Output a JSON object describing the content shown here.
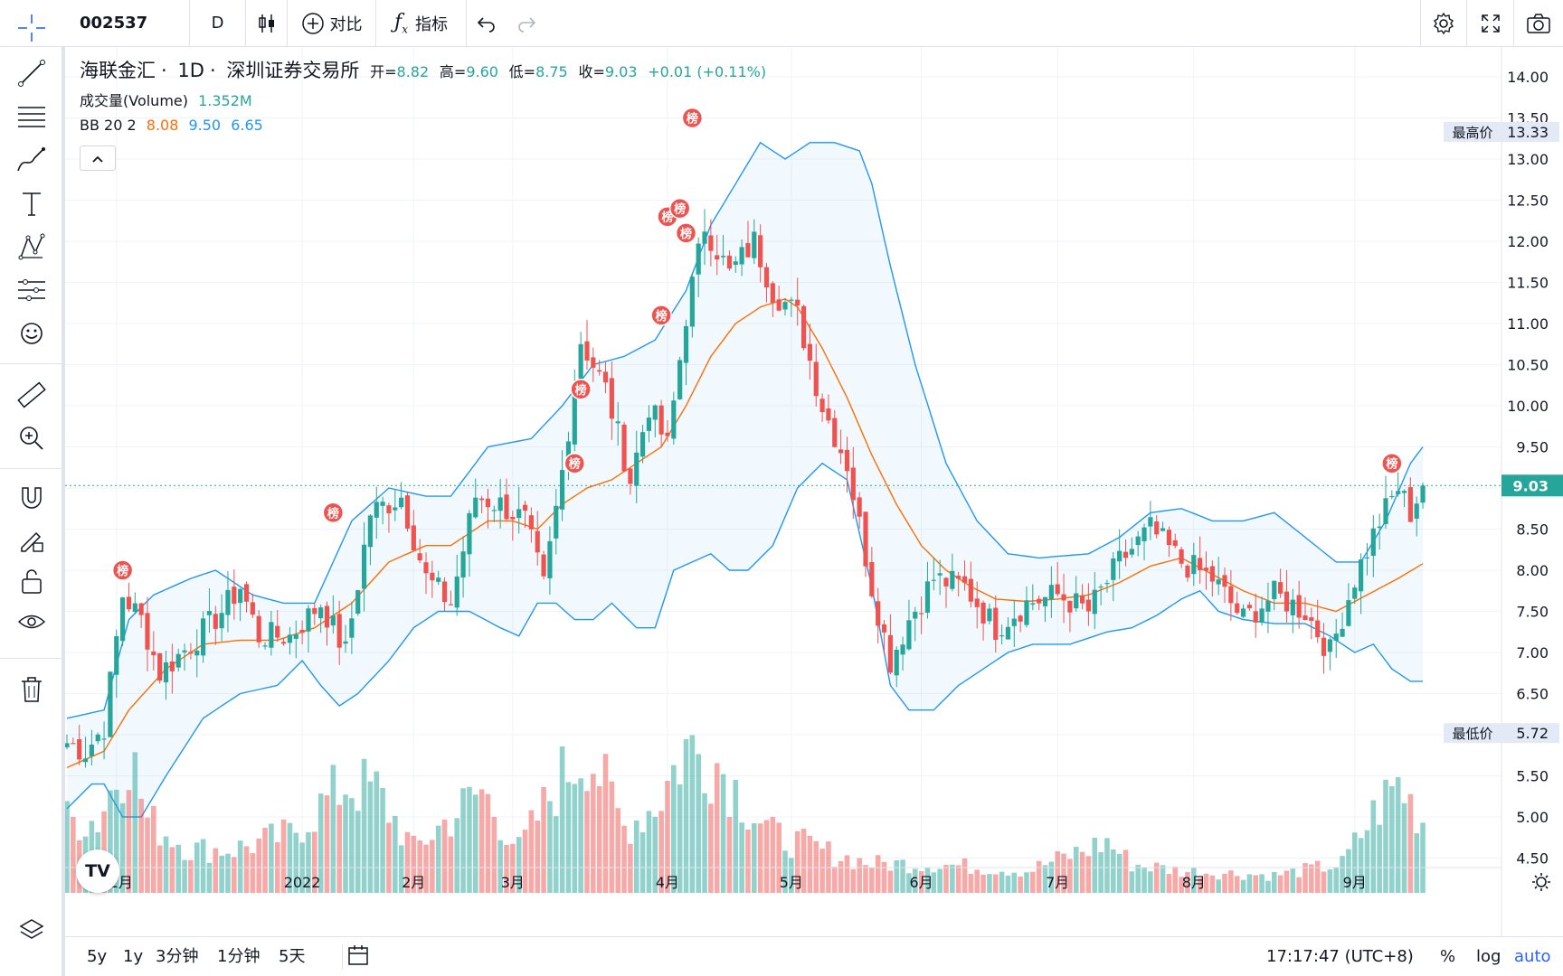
{
  "toolbar": {
    "symbol": "002537",
    "interval": "D",
    "compare_label": "对比",
    "indicators_label": "指标"
  },
  "legend": {
    "name": "海联金汇",
    "interval": "1D",
    "exchange": "深圳证券交易所",
    "open_label": "开=",
    "open": "8.82",
    "high_label": "高=",
    "high": "9.60",
    "low_label": "低=",
    "low": "8.75",
    "close_label": "收=",
    "close": "9.03",
    "change": "+0.01 (+0.11%)",
    "volume_label": "成交量(Volume)",
    "volume_value": "1.352M",
    "bb_label": "BB 20 2",
    "bb_middle": "8.08",
    "bb_upper": "9.50",
    "bb_lower": "6.65"
  },
  "badges": {
    "high_label": "最高价",
    "high_value": "13.33",
    "low_label": "最低价",
    "low_value": "5.72",
    "last_price": "9.03"
  },
  "marker_text": "榜",
  "bottom": {
    "ranges": [
      "5y",
      "1y",
      "3分钟",
      "1分钟",
      "5天"
    ],
    "time": "17:17:47 (UTC+8)",
    "percent": "%",
    "log": "log",
    "auto": "auto"
  },
  "colors": {
    "up": "#26a69a",
    "down": "#ef5350",
    "bb_band": "#2196f3",
    "bb_middle": "#ff6d00",
    "accent": "#2962ff"
  },
  "chart_data": {
    "type": "candlestick",
    "title": "海联金汇 · 1D · 深圳证券交易所",
    "y_ticks": [
      "4.50",
      "5.00",
      "5.50",
      "6.00",
      "6.50",
      "7.00",
      "7.50",
      "8.00",
      "8.50",
      "9.00",
      "9.50",
      "10.00",
      "10.50",
      "11.00",
      "11.50",
      "12.00",
      "12.50",
      "13.00",
      "13.50",
      "14.00"
    ],
    "x_ticks": [
      "12月",
      "2022",
      "2月",
      "3月",
      "4月",
      "5月",
      "6月",
      "7月",
      "8月",
      "9月"
    ],
    "ylim": [
      4.2,
      14.2
    ],
    "last_price": 9.03,
    "anchors": [
      {
        "x": 0,
        "v": 5.9
      },
      {
        "x": 3,
        "v": 5.8
      },
      {
        "x": 6,
        "v": 6.1
      },
      {
        "x": 9,
        "v": 7.7
      },
      {
        "x": 12,
        "v": 7.4
      },
      {
        "x": 15,
        "v": 6.75
      },
      {
        "x": 20,
        "v": 7.1
      },
      {
        "x": 25,
        "v": 7.5
      },
      {
        "x": 28,
        "v": 7.8
      },
      {
        "x": 31,
        "v": 7.2
      },
      {
        "x": 36,
        "v": 7.2
      },
      {
        "x": 41,
        "v": 7.6
      },
      {
        "x": 45,
        "v": 7.0
      },
      {
        "x": 49,
        "v": 8.7
      },
      {
        "x": 54,
        "v": 8.9
      },
      {
        "x": 58,
        "v": 7.9
      },
      {
        "x": 62,
        "v": 7.6
      },
      {
        "x": 66,
        "v": 8.9
      },
      {
        "x": 70,
        "v": 8.8
      },
      {
        "x": 74,
        "v": 8.6
      },
      {
        "x": 77,
        "v": 7.8
      },
      {
        "x": 80,
        "v": 9.2
      },
      {
        "x": 83,
        "v": 10.8
      },
      {
        "x": 87,
        "v": 10.2
      },
      {
        "x": 91,
        "v": 9.1
      },
      {
        "x": 94,
        "v": 10.0
      },
      {
        "x": 97,
        "v": 9.5
      },
      {
        "x": 100,
        "v": 11.1
      },
      {
        "x": 103,
        "v": 12.2
      },
      {
        "x": 107,
        "v": 11.6
      },
      {
        "x": 111,
        "v": 12.0
      },
      {
        "x": 114,
        "v": 11.4
      },
      {
        "x": 118,
        "v": 11.1
      },
      {
        "x": 122,
        "v": 10.0
      },
      {
        "x": 126,
        "v": 9.3
      },
      {
        "x": 130,
        "v": 7.8
      },
      {
        "x": 133,
        "v": 6.9
      },
      {
        "x": 136,
        "v": 7.4
      },
      {
        "x": 140,
        "v": 7.9
      },
      {
        "x": 145,
        "v": 7.8
      },
      {
        "x": 150,
        "v": 7.3
      },
      {
        "x": 155,
        "v": 7.6
      },
      {
        "x": 160,
        "v": 7.7
      },
      {
        "x": 165,
        "v": 7.5
      },
      {
        "x": 170,
        "v": 8.1
      },
      {
        "x": 175,
        "v": 8.5
      },
      {
        "x": 180,
        "v": 8.1
      },
      {
        "x": 185,
        "v": 7.9
      },
      {
        "x": 190,
        "v": 7.4
      },
      {
        "x": 195,
        "v": 7.7
      },
      {
        "x": 200,
        "v": 7.5
      },
      {
        "x": 204,
        "v": 7.0
      },
      {
        "x": 208,
        "v": 7.9
      },
      {
        "x": 212,
        "v": 8.6
      },
      {
        "x": 215,
        "v": 9.0
      },
      {
        "x": 217,
        "v": 8.7
      },
      {
        "x": 219,
        "v": 9.03
      }
    ],
    "bb_upper": [
      {
        "x": 0,
        "v": 6.2
      },
      {
        "x": 6,
        "v": 6.3
      },
      {
        "x": 10,
        "v": 7.4
      },
      {
        "x": 14,
        "v": 7.7
      },
      {
        "x": 20,
        "v": 7.9
      },
      {
        "x": 24,
        "v": 8.0
      },
      {
        "x": 30,
        "v": 7.7
      },
      {
        "x": 35,
        "v": 7.6
      },
      {
        "x": 40,
        "v": 7.6
      },
      {
        "x": 46,
        "v": 8.6
      },
      {
        "x": 52,
        "v": 9.0
      },
      {
        "x": 58,
        "v": 8.9
      },
      {
        "x": 62,
        "v": 8.9
      },
      {
        "x": 68,
        "v": 9.5
      },
      {
        "x": 75,
        "v": 9.6
      },
      {
        "x": 80,
        "v": 10.0
      },
      {
        "x": 85,
        "v": 10.5
      },
      {
        "x": 90,
        "v": 10.6
      },
      {
        "x": 95,
        "v": 10.8
      },
      {
        "x": 100,
        "v": 11.4
      },
      {
        "x": 104,
        "v": 12.2
      },
      {
        "x": 108,
        "v": 12.7
      },
      {
        "x": 112,
        "v": 13.2
      },
      {
        "x": 116,
        "v": 13.0
      },
      {
        "x": 120,
        "v": 13.2
      },
      {
        "x": 124,
        "v": 13.2
      },
      {
        "x": 128,
        "v": 13.1
      },
      {
        "x": 130,
        "v": 12.7
      },
      {
        "x": 133,
        "v": 11.7
      },
      {
        "x": 137,
        "v": 10.5
      },
      {
        "x": 142,
        "v": 9.3
      },
      {
        "x": 147,
        "v": 8.6
      },
      {
        "x": 152,
        "v": 8.2
      },
      {
        "x": 157,
        "v": 8.15
      },
      {
        "x": 165,
        "v": 8.2
      },
      {
        "x": 170,
        "v": 8.4
      },
      {
        "x": 175,
        "v": 8.7
      },
      {
        "x": 180,
        "v": 8.75
      },
      {
        "x": 185,
        "v": 8.6
      },
      {
        "x": 190,
        "v": 8.6
      },
      {
        "x": 195,
        "v": 8.7
      },
      {
        "x": 200,
        "v": 8.4
      },
      {
        "x": 205,
        "v": 8.1
      },
      {
        "x": 209,
        "v": 8.1
      },
      {
        "x": 213,
        "v": 8.6
      },
      {
        "x": 217,
        "v": 9.3
      },
      {
        "x": 219,
        "v": 9.5
      }
    ],
    "bb_middle": [
      {
        "x": 0,
        "v": 5.6
      },
      {
        "x": 6,
        "v": 5.8
      },
      {
        "x": 10,
        "v": 6.3
      },
      {
        "x": 16,
        "v": 6.8
      },
      {
        "x": 22,
        "v": 7.1
      },
      {
        "x": 28,
        "v": 7.15
      },
      {
        "x": 34,
        "v": 7.15
      },
      {
        "x": 40,
        "v": 7.3
      },
      {
        "x": 46,
        "v": 7.6
      },
      {
        "x": 52,
        "v": 8.1
      },
      {
        "x": 58,
        "v": 8.3
      },
      {
        "x": 62,
        "v": 8.3
      },
      {
        "x": 68,
        "v": 8.6
      },
      {
        "x": 72,
        "v": 8.6
      },
      {
        "x": 76,
        "v": 8.5
      },
      {
        "x": 80,
        "v": 8.8
      },
      {
        "x": 84,
        "v": 9.0
      },
      {
        "x": 88,
        "v": 9.1
      },
      {
        "x": 92,
        "v": 9.3
      },
      {
        "x": 96,
        "v": 9.5
      },
      {
        "x": 100,
        "v": 10.0
      },
      {
        "x": 104,
        "v": 10.6
      },
      {
        "x": 108,
        "v": 11.0
      },
      {
        "x": 112,
        "v": 11.2
      },
      {
        "x": 116,
        "v": 11.3
      },
      {
        "x": 118,
        "v": 11.2
      },
      {
        "x": 122,
        "v": 10.7
      },
      {
        "x": 126,
        "v": 10.1
      },
      {
        "x": 130,
        "v": 9.4
      },
      {
        "x": 134,
        "v": 8.8
      },
      {
        "x": 138,
        "v": 8.3
      },
      {
        "x": 142,
        "v": 8.0
      },
      {
        "x": 146,
        "v": 7.8
      },
      {
        "x": 150,
        "v": 7.65
      },
      {
        "x": 155,
        "v": 7.62
      },
      {
        "x": 160,
        "v": 7.65
      },
      {
        "x": 165,
        "v": 7.7
      },
      {
        "x": 170,
        "v": 7.85
      },
      {
        "x": 175,
        "v": 8.05
      },
      {
        "x": 180,
        "v": 8.15
      },
      {
        "x": 185,
        "v": 7.95
      },
      {
        "x": 190,
        "v": 7.75
      },
      {
        "x": 195,
        "v": 7.6
      },
      {
        "x": 200,
        "v": 7.6
      },
      {
        "x": 205,
        "v": 7.5
      },
      {
        "x": 210,
        "v": 7.7
      },
      {
        "x": 215,
        "v": 7.9
      },
      {
        "x": 219,
        "v": 8.08
      }
    ],
    "bb_lower": [
      {
        "x": 0,
        "v": 5.1
      },
      {
        "x": 4,
        "v": 5.4
      },
      {
        "x": 6,
        "v": 5.4
      },
      {
        "x": 9,
        "v": 5.0
      },
      {
        "x": 12,
        "v": 5.0
      },
      {
        "x": 16,
        "v": 5.5
      },
      {
        "x": 22,
        "v": 6.2
      },
      {
        "x": 28,
        "v": 6.5
      },
      {
        "x": 34,
        "v": 6.6
      },
      {
        "x": 38,
        "v": 6.9
      },
      {
        "x": 41,
        "v": 6.6
      },
      {
        "x": 44,
        "v": 6.35
      },
      {
        "x": 47,
        "v": 6.5
      },
      {
        "x": 52,
        "v": 6.9
      },
      {
        "x": 56,
        "v": 7.3
      },
      {
        "x": 60,
        "v": 7.5
      },
      {
        "x": 65,
        "v": 7.5
      },
      {
        "x": 70,
        "v": 7.3
      },
      {
        "x": 73,
        "v": 7.2
      },
      {
        "x": 76,
        "v": 7.6
      },
      {
        "x": 79,
        "v": 7.6
      },
      {
        "x": 82,
        "v": 7.4
      },
      {
        "x": 85,
        "v": 7.4
      },
      {
        "x": 88,
        "v": 7.6
      },
      {
        "x": 92,
        "v": 7.3
      },
      {
        "x": 95,
        "v": 7.3
      },
      {
        "x": 98,
        "v": 8.0
      },
      {
        "x": 101,
        "v": 8.1
      },
      {
        "x": 104,
        "v": 8.2
      },
      {
        "x": 107,
        "v": 8.0
      },
      {
        "x": 110,
        "v": 8.0
      },
      {
        "x": 114,
        "v": 8.3
      },
      {
        "x": 118,
        "v": 9.0
      },
      {
        "x": 122,
        "v": 9.3
      },
      {
        "x": 126,
        "v": 9.1
      },
      {
        "x": 130,
        "v": 7.8
      },
      {
        "x": 133,
        "v": 6.6
      },
      {
        "x": 136,
        "v": 6.3
      },
      {
        "x": 140,
        "v": 6.3
      },
      {
        "x": 144,
        "v": 6.6
      },
      {
        "x": 148,
        "v": 6.8
      },
      {
        "x": 152,
        "v": 7.0
      },
      {
        "x": 156,
        "v": 7.1
      },
      {
        "x": 162,
        "v": 7.1
      },
      {
        "x": 168,
        "v": 7.25
      },
      {
        "x": 172,
        "v": 7.3
      },
      {
        "x": 176,
        "v": 7.45
      },
      {
        "x": 180,
        "v": 7.65
      },
      {
        "x": 183,
        "v": 7.75
      },
      {
        "x": 186,
        "v": 7.5
      },
      {
        "x": 190,
        "v": 7.4
      },
      {
        "x": 195,
        "v": 7.35
      },
      {
        "x": 200,
        "v": 7.35
      },
      {
        "x": 204,
        "v": 7.2
      },
      {
        "x": 208,
        "v": 7.0
      },
      {
        "x": 211,
        "v": 7.1
      },
      {
        "x": 214,
        "v": 6.8
      },
      {
        "x": 217,
        "v": 6.65
      },
      {
        "x": 219,
        "v": 6.65
      }
    ],
    "ranking_markers": [
      {
        "x": 9,
        "v": 8.0
      },
      {
        "x": 43,
        "v": 8.7
      },
      {
        "x": 82,
        "v": 9.3
      },
      {
        "x": 83,
        "v": 10.2
      },
      {
        "x": 96,
        "v": 11.1
      },
      {
        "x": 97,
        "v": 12.3
      },
      {
        "x": 99,
        "v": 12.4
      },
      {
        "x": 100,
        "v": 12.1
      },
      {
        "x": 101,
        "v": 13.5
      },
      {
        "x": 214,
        "v": 9.3
      }
    ],
    "volume_peaks": [
      {
        "x": 5,
        "v": 0.5
      },
      {
        "x": 10,
        "v": 1.0
      },
      {
        "x": 13,
        "v": 0.5
      },
      {
        "x": 20,
        "v": 0.3
      },
      {
        "x": 27,
        "v": 0.3
      },
      {
        "x": 36,
        "v": 0.4
      },
      {
        "x": 45,
        "v": 0.75
      },
      {
        "x": 50,
        "v": 0.7
      },
      {
        "x": 56,
        "v": 0.3
      },
      {
        "x": 67,
        "v": 0.7
      },
      {
        "x": 73,
        "v": 0.3
      },
      {
        "x": 80,
        "v": 0.8
      },
      {
        "x": 84,
        "v": 1.0
      },
      {
        "x": 90,
        "v": 0.45
      },
      {
        "x": 95,
        "v": 0.6
      },
      {
        "x": 100,
        "v": 1.0
      },
      {
        "x": 105,
        "v": 0.9
      },
      {
        "x": 110,
        "v": 0.6
      },
      {
        "x": 114,
        "v": 0.4
      },
      {
        "x": 125,
        "v": 0.25
      },
      {
        "x": 130,
        "v": 0.2
      },
      {
        "x": 140,
        "v": 0.2
      },
      {
        "x": 155,
        "v": 0.15
      },
      {
        "x": 168,
        "v": 0.35
      },
      {
        "x": 172,
        "v": 0.2
      },
      {
        "x": 180,
        "v": 0.15
      },
      {
        "x": 195,
        "v": 0.12
      },
      {
        "x": 206,
        "v": 0.2
      },
      {
        "x": 212,
        "v": 0.6
      },
      {
        "x": 215,
        "v": 0.75
      },
      {
        "x": 219,
        "v": 0.5
      }
    ]
  }
}
